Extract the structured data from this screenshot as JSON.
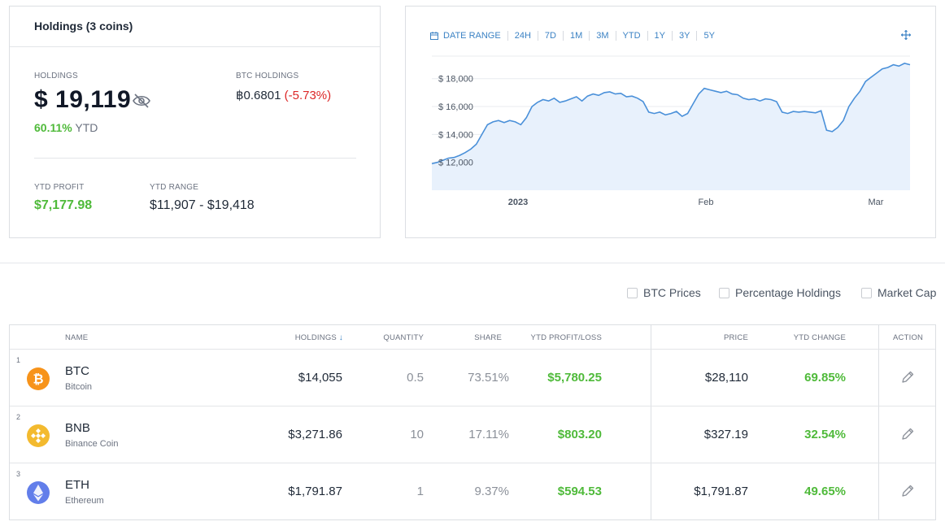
{
  "holdings_card": {
    "title": "Holdings (3 coins)",
    "holdings_label": "HOLDINGS",
    "holdings_value": "$ 19,119",
    "ytd_percent": "60.11%",
    "ytd_label": "YTD",
    "btc_label": "BTC HOLDINGS",
    "btc_value": "฿0.6801",
    "btc_change": "(-5.73%)",
    "ytd_profit_label": "YTD PROFIT",
    "ytd_profit_value": "$7,177.98",
    "ytd_range_label": "YTD RANGE",
    "ytd_range_value": "$11,907 - $19,418"
  },
  "chart_toolbar": {
    "date_range_label": "DATE RANGE",
    "ranges": [
      "24H",
      "7D",
      "1M",
      "3M",
      "YTD",
      "1Y",
      "3Y",
      "5Y"
    ]
  },
  "chart_data": {
    "type": "area",
    "title": "",
    "xlabel": "",
    "ylabel": "",
    "x_ticks": [
      "2023",
      "Feb",
      "Mar"
    ],
    "y_ticks": [
      "$ 12,000",
      "$ 14,000",
      "$ 16,000",
      "$ 18,000"
    ],
    "ylim": [
      10000,
      19500
    ],
    "grid": true,
    "color": "#4a90d9",
    "fill": "#e8f1fc",
    "series": [
      {
        "values": [
          11900,
          12000,
          12150,
          12300,
          12350,
          12500,
          12700,
          12950,
          13300,
          14000,
          14700,
          14900,
          15000,
          14850,
          15000,
          14900,
          14700,
          15200,
          16000,
          16300,
          16500,
          16400,
          16600,
          16300,
          16400,
          16550,
          16700,
          16400,
          16750,
          16900,
          16800,
          17000,
          17050,
          16900,
          16950,
          16700,
          16750,
          16600,
          16350,
          15600,
          15500,
          15600,
          15400,
          15500,
          15650,
          15300,
          15500,
          16200,
          16900,
          17300,
          17200,
          17100,
          17000,
          17100,
          16900,
          16850,
          16600,
          16500,
          16550,
          16400,
          16550,
          16500,
          16350,
          15600,
          15500,
          15650,
          15600,
          15650,
          15600,
          15550,
          15700,
          14300,
          14200,
          14500,
          15000,
          16000,
          16600,
          17100,
          17800,
          18100,
          18400,
          18700,
          18800,
          19000,
          18900,
          19100,
          19000
        ]
      }
    ]
  },
  "options": {
    "btc_prices": "BTC Prices",
    "percentage_holdings": "Percentage Holdings",
    "market_cap": "Market Cap"
  },
  "table": {
    "headers": {
      "name": "NAME",
      "holdings": "HOLDINGS",
      "quantity": "QUANTITY",
      "share": "SHARE",
      "ytd_pl": "YTD PROFIT/LOSS",
      "price": "PRICE",
      "ytd_change": "YTD CHANGE",
      "action": "ACTION"
    },
    "rows": [
      {
        "rank": "1",
        "symbol": "BTC",
        "name": "Bitcoin",
        "holdings": "$14,055",
        "quantity": "0.5",
        "share": "73.51%",
        "ytd_pl": "$5,780.25",
        "price": "$28,110",
        "ytd_change": "69.85%",
        "icon": "bitcoin-icon",
        "color": "#f7931a"
      },
      {
        "rank": "2",
        "symbol": "BNB",
        "name": "Binance Coin",
        "holdings": "$3,271.86",
        "quantity": "10",
        "share": "17.11%",
        "ytd_pl": "$803.20",
        "price": "$327.19",
        "ytd_change": "32.54%",
        "icon": "bnb-icon",
        "color": "#f3ba2f"
      },
      {
        "rank": "3",
        "symbol": "ETH",
        "name": "Ethereum",
        "holdings": "$1,791.87",
        "quantity": "1",
        "share": "9.37%",
        "ytd_pl": "$594.53",
        "price": "$1,791.87",
        "ytd_change": "49.65%",
        "icon": "ethereum-icon",
        "color": "#627eea"
      }
    ]
  }
}
